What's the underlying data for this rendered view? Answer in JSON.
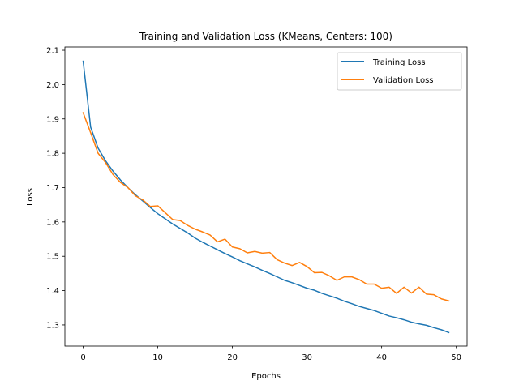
{
  "chart_data": {
    "type": "line",
    "title": "Training and Validation Loss (KMeans, Centers: 100)",
    "xlabel": "Epochs",
    "ylabel": "Loss",
    "xlim": [
      -2.45,
      51.45
    ],
    "ylim": [
      1.2385,
      2.1095
    ],
    "xticks": [
      0,
      10,
      20,
      30,
      40,
      50
    ],
    "yticks": [
      1.3,
      1.4,
      1.5,
      1.6,
      1.7,
      1.8,
      1.9,
      2.0,
      2.1
    ],
    "ytick_labels": [
      "1.3",
      "1.4",
      "1.5",
      "1.6",
      "1.7",
      "1.8",
      "1.9",
      "2.0",
      "2.1"
    ],
    "grid": false,
    "legend_position": "top-right",
    "x": [
      0,
      1,
      2,
      3,
      4,
      5,
      6,
      7,
      8,
      9,
      10,
      11,
      12,
      13,
      14,
      15,
      16,
      17,
      18,
      19,
      20,
      21,
      22,
      23,
      24,
      25,
      26,
      27,
      28,
      29,
      30,
      31,
      32,
      33,
      34,
      35,
      36,
      37,
      38,
      39,
      40,
      41,
      42,
      43,
      44,
      45,
      46,
      47,
      48,
      49
    ],
    "series": [
      {
        "name": "Training Loss",
        "color": "#1f77b4",
        "values": [
          2.068,
          1.876,
          1.815,
          1.778,
          1.748,
          1.722,
          1.7,
          1.679,
          1.661,
          1.642,
          1.624,
          1.609,
          1.594,
          1.581,
          1.568,
          1.553,
          1.541,
          1.53,
          1.519,
          1.508,
          1.498,
          1.487,
          1.478,
          1.469,
          1.459,
          1.45,
          1.44,
          1.43,
          1.423,
          1.415,
          1.407,
          1.401,
          1.392,
          1.385,
          1.378,
          1.369,
          1.362,
          1.354,
          1.348,
          1.342,
          1.334,
          1.326,
          1.321,
          1.315,
          1.308,
          1.303,
          1.299,
          1.292,
          1.286,
          1.278
        ]
      },
      {
        "name": "Validation Loss",
        "color": "#ff7f0e",
        "values": [
          1.918,
          1.86,
          1.8,
          1.773,
          1.738,
          1.715,
          1.7,
          1.676,
          1.664,
          1.645,
          1.647,
          1.627,
          1.607,
          1.604,
          1.59,
          1.579,
          1.571,
          1.562,
          1.542,
          1.55,
          1.527,
          1.522,
          1.51,
          1.514,
          1.509,
          1.511,
          1.49,
          1.48,
          1.473,
          1.482,
          1.47,
          1.452,
          1.453,
          1.443,
          1.43,
          1.44,
          1.44,
          1.432,
          1.419,
          1.419,
          1.407,
          1.41,
          1.392,
          1.41,
          1.393,
          1.41,
          1.39,
          1.388,
          1.376,
          1.37
        ]
      }
    ]
  }
}
